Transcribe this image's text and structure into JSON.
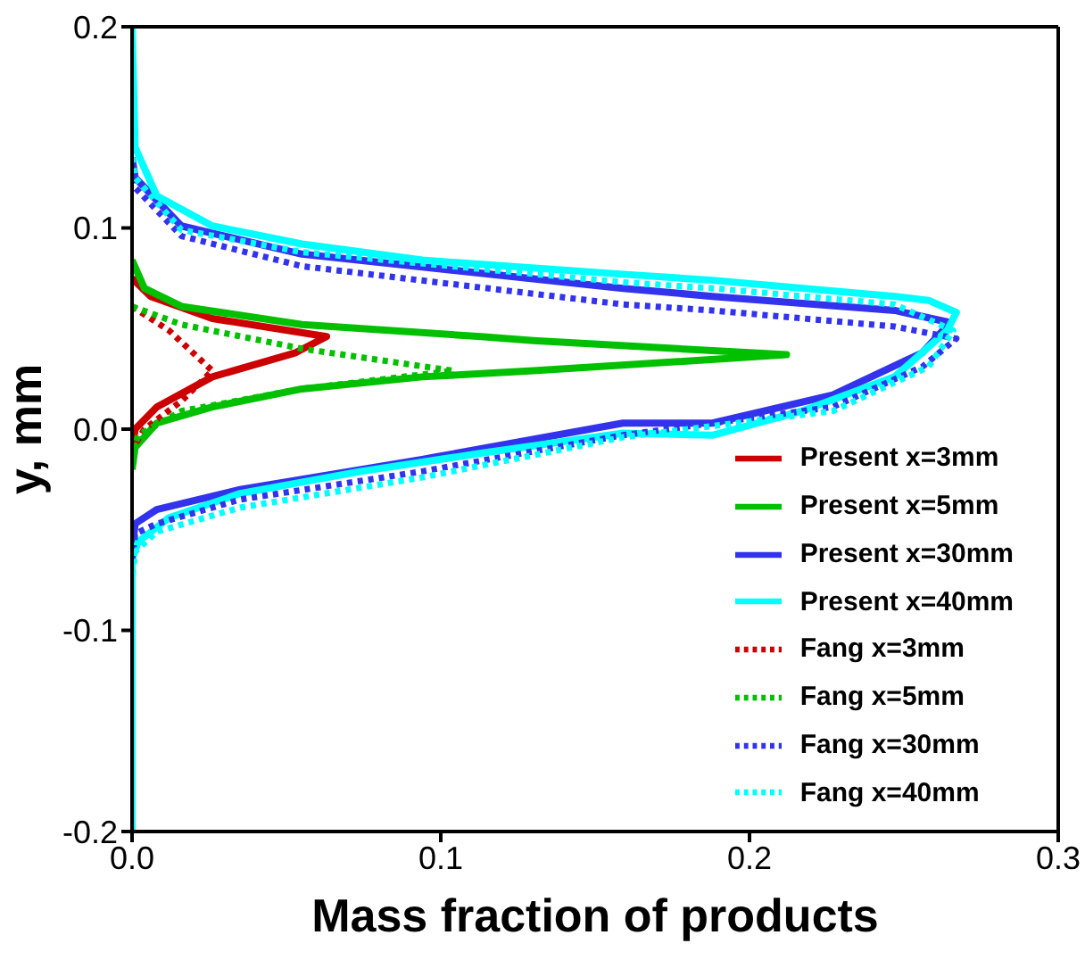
{
  "chart_data": {
    "type": "line",
    "xlabel": "Mass fraction of products",
    "ylabel": "y, mm",
    "xlim": [
      0,
      0.3
    ],
    "xticks": [
      {
        "value": 0,
        "label": "0.0"
      },
      0.1,
      0.2,
      0.3
    ],
    "ylim": [
      -0.2,
      0.2
    ],
    "yticks": [
      -0.2,
      -0.1,
      {
        "value": 0,
        "label": "0.0"
      },
      0.1,
      0.2
    ],
    "grid": false,
    "legend": "bottom right",
    "marker": "none",
    "series": [
      {
        "name": "Present x=3mm",
        "color": "#cc0000",
        "line_style": "solid",
        "x": [
          0,
          0.006,
          0.026,
          0.063,
          0.053,
          0.026,
          0.008,
          0.001,
          0
        ],
        "values": [
          0.075,
          0.066,
          0.055,
          0.046,
          0.038,
          0.026,
          0.011,
          0.0,
          -0.01
        ]
      },
      {
        "name": "Present x=5mm",
        "color": "#00c000",
        "line_style": "solid",
        "x": [
          0,
          0.004,
          0.016,
          0.055,
          0.113,
          0.13,
          0.212,
          0.13,
          0.094,
          0.055,
          0.026,
          0.008,
          0.001,
          0
        ],
        "values": [
          0.084,
          0.07,
          0.061,
          0.052,
          0.046,
          0.044,
          0.037,
          0.029,
          0.026,
          0.02,
          0.011,
          0.003,
          -0.009,
          -0.02
        ]
      },
      {
        "name": "Present x=30mm",
        "color": "#3333ee",
        "line_style": "solid",
        "x": [
          0,
          0.001,
          0.016,
          0.055,
          0.159,
          0.188,
          0.247,
          0.265,
          0.256,
          0.227,
          0.188,
          0.159,
          0.094,
          0.035,
          0.008,
          0.001,
          0
        ],
        "values": [
          0.135,
          0.125,
          0.101,
          0.087,
          0.07,
          0.066,
          0.059,
          0.053,
          0.038,
          0.017,
          0.003,
          0.003,
          -0.015,
          -0.03,
          -0.04,
          -0.047,
          -0.06
        ]
      },
      {
        "name": "Present x=40mm",
        "color": "#00ffff",
        "line_style": "solid",
        "x": [
          0,
          0.001,
          0.008,
          0.026,
          0.055,
          0.094,
          0.159,
          0.188,
          0.247,
          0.258,
          0.267,
          0.264,
          0.247,
          0.217,
          0.188,
          0.159,
          0.113,
          0.074,
          0.035,
          0.012,
          0.002,
          0,
          0
        ],
        "values": [
          0.2,
          0.14,
          0.116,
          0.101,
          0.092,
          0.084,
          0.077,
          0.074,
          0.066,
          0.064,
          0.058,
          0.049,
          0.026,
          0.009,
          -0.003,
          -0.002,
          -0.012,
          -0.021,
          -0.032,
          -0.044,
          -0.056,
          -0.065,
          -0.2
        ]
      },
      {
        "name": "Fang x=3mm",
        "color": "#cc0000",
        "line_style": "dotted",
        "x": [
          0,
          0.012,
          0.026,
          0.016,
          0.004,
          0
        ],
        "values": [
          0.061,
          0.049,
          0.029,
          0.014,
          0.0,
          -0.01
        ]
      },
      {
        "name": "Fang x=5mm",
        "color": "#00c000",
        "line_style": "dotted",
        "x": [
          0,
          0.016,
          0.055,
          0.104,
          0.055,
          0.016,
          0.002,
          0
        ],
        "values": [
          0.061,
          0.052,
          0.04,
          0.029,
          0.02,
          0.009,
          -0.003,
          -0.012
        ]
      },
      {
        "name": "Fang x=30mm",
        "color": "#3333ee",
        "line_style": "dotted",
        "x": [
          0,
          0.001,
          0.016,
          0.055,
          0.159,
          0.188,
          0.247,
          0.267,
          0.256,
          0.227,
          0.159,
          0.094,
          0.035,
          0.008,
          0.001,
          0
        ],
        "values": [
          0.13,
          0.12,
          0.096,
          0.081,
          0.062,
          0.059,
          0.051,
          0.045,
          0.031,
          0.011,
          -0.003,
          -0.021,
          -0.035,
          -0.047,
          -0.052,
          -0.065
        ]
      },
      {
        "name": "Fang x=40mm",
        "color": "#00ffff",
        "line_style": "dotted",
        "x": [
          0,
          0.001,
          0.016,
          0.055,
          0.159,
          0.188,
          0.247,
          0.266,
          0.258,
          0.227,
          0.159,
          0.094,
          0.035,
          0.008,
          0.001,
          0
        ],
        "values": [
          0.135,
          0.125,
          0.099,
          0.088,
          0.073,
          0.07,
          0.062,
          0.049,
          0.031,
          0.009,
          -0.004,
          -0.024,
          -0.039,
          -0.051,
          -0.061,
          -0.075
        ]
      }
    ]
  }
}
